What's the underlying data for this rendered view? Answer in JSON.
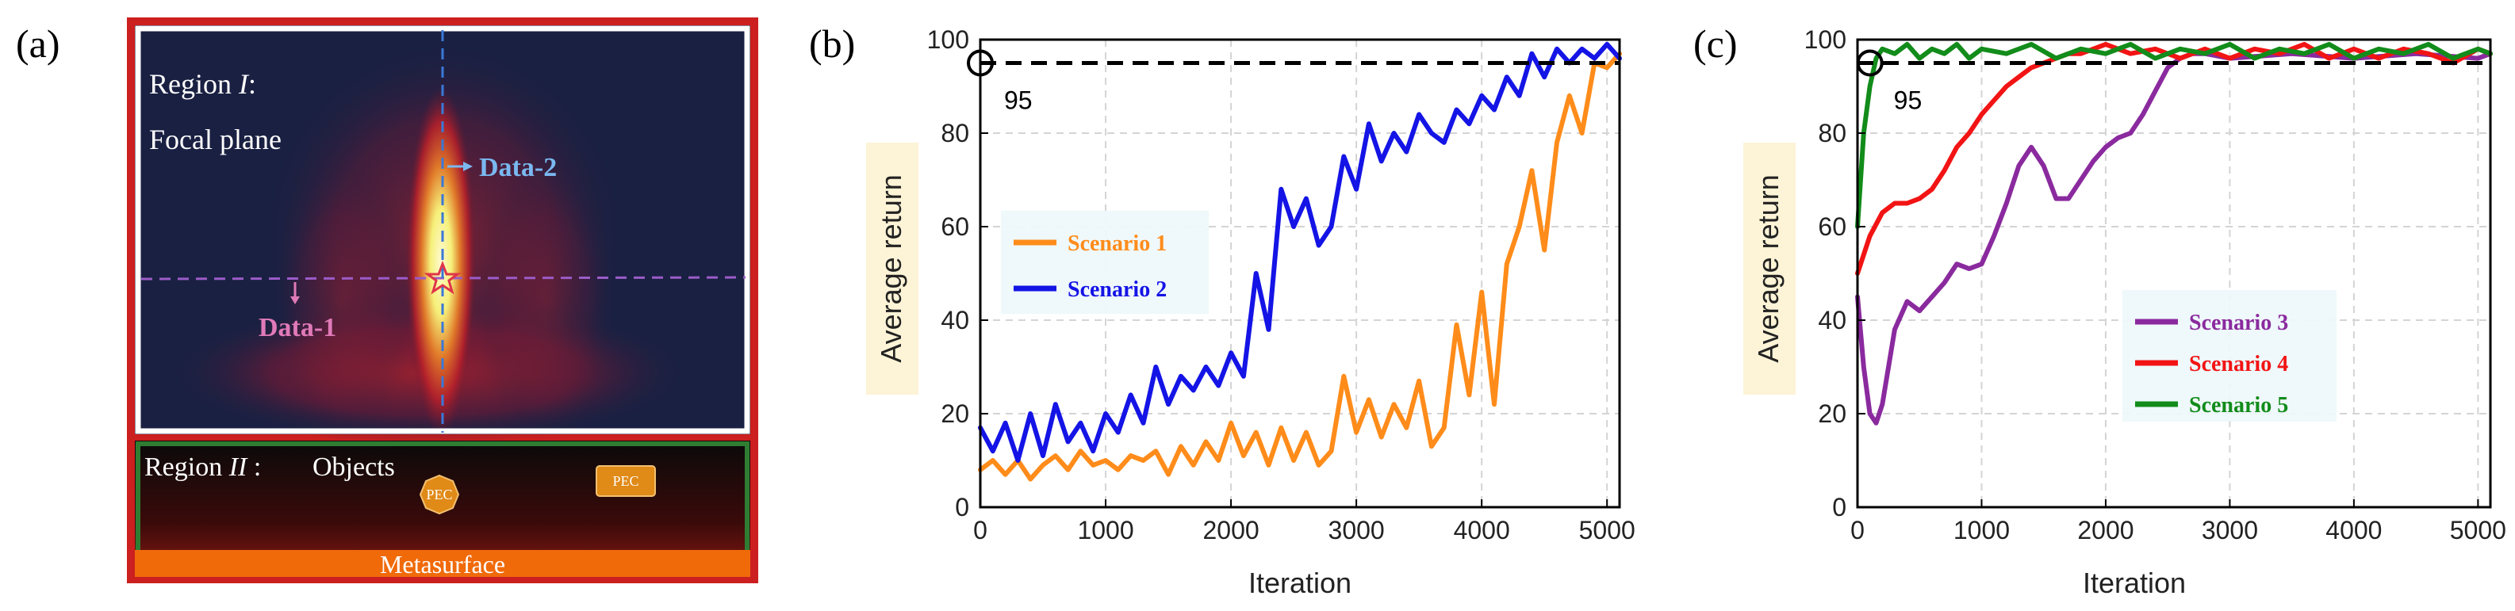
{
  "panel_labels": {
    "a": "(a)",
    "b": "(b)",
    "c": "(c)"
  },
  "panel_a": {
    "region1_prefix": "Region ",
    "region1_numeral": "I",
    "region1_suffix": ":",
    "focal_plane": "Focal plane",
    "data1": "Data-1",
    "data2": "Data-2",
    "region2_prefix": "Region ",
    "region2_numeral": "II",
    "region2_suffix": " :",
    "objects": "Objects",
    "pec1": "PEC",
    "pec2": "PEC",
    "metasurface": "Metasurface",
    "colors": {
      "background": "#1a2042",
      "hotspot": "#f6f07a",
      "red": "#c41e2a",
      "frame_region1": "#ffffff",
      "frame_region2": "#2f7d32",
      "outer_frame": "#cc1f1f",
      "metasurface": "#f06a0a",
      "pec": "#e08a18",
      "data1_line": "#9b5cc8",
      "data2_line": "#3a78d8",
      "data1_text": "#e07ab8",
      "data2_text": "#7ab8f0"
    }
  },
  "chart_data": [
    {
      "type": "line",
      "panel": "b",
      "xlabel": "Iteration",
      "ylabel": "Average return",
      "xlim": [
        0,
        5100
      ],
      "ylim": [
        0,
        100
      ],
      "xticks": [
        0,
        1000,
        2000,
        3000,
        4000,
        5000
      ],
      "yticks": [
        0,
        20,
        40,
        60,
        80,
        100
      ],
      "grid": true,
      "legend_position": "center-left",
      "threshold": {
        "y": 95,
        "label": "95"
      },
      "series": [
        {
          "name": "Scenario 1",
          "color": "#ff8c1a",
          "x": [
            0,
            100,
            200,
            300,
            400,
            500,
            600,
            700,
            800,
            900,
            1000,
            1100,
            1200,
            1300,
            1400,
            1500,
            1600,
            1700,
            1800,
            1900,
            2000,
            2100,
            2200,
            2300,
            2400,
            2500,
            2600,
            2700,
            2800,
            2900,
            3000,
            3100,
            3200,
            3300,
            3400,
            3500,
            3600,
            3700,
            3800,
            3900,
            4000,
            4100,
            4200,
            4300,
            4400,
            4500,
            4600,
            4700,
            4800,
            4900,
            5000,
            5100
          ],
          "y": [
            8,
            10,
            7,
            10,
            6,
            9,
            11,
            8,
            12,
            9,
            10,
            8,
            11,
            10,
            12,
            7,
            13,
            9,
            14,
            10,
            18,
            11,
            16,
            9,
            17,
            10,
            16,
            9,
            12,
            28,
            16,
            23,
            15,
            22,
            17,
            27,
            13,
            17,
            39,
            24,
            46,
            22,
            52,
            60,
            72,
            55,
            78,
            88,
            80,
            95,
            94,
            97
          ]
        },
        {
          "name": "Scenario 2",
          "color": "#1414e6",
          "x": [
            0,
            100,
            200,
            300,
            400,
            500,
            600,
            700,
            800,
            900,
            1000,
            1100,
            1200,
            1300,
            1400,
            1500,
            1600,
            1700,
            1800,
            1900,
            2000,
            2100,
            2200,
            2300,
            2400,
            2500,
            2600,
            2700,
            2800,
            2900,
            3000,
            3100,
            3200,
            3300,
            3400,
            3500,
            3600,
            3700,
            3800,
            3900,
            4000,
            4100,
            4200,
            4300,
            4400,
            4500,
            4600,
            4700,
            4800,
            4900,
            5000,
            5100
          ],
          "y": [
            17,
            12,
            18,
            10,
            20,
            11,
            22,
            14,
            18,
            12,
            20,
            16,
            24,
            18,
            30,
            22,
            28,
            25,
            30,
            26,
            33,
            28,
            50,
            38,
            68,
            60,
            66,
            56,
            60,
            75,
            68,
            82,
            74,
            80,
            76,
            84,
            80,
            78,
            85,
            82,
            88,
            85,
            92,
            88,
            97,
            92,
            98,
            95,
            98,
            96,
            99,
            96
          ]
        }
      ]
    },
    {
      "type": "line",
      "panel": "c",
      "xlabel": "Iteration",
      "ylabel": "Average return",
      "xlim": [
        0,
        5100
      ],
      "ylim": [
        0,
        100
      ],
      "xticks": [
        0,
        1000,
        2000,
        3000,
        4000,
        5000
      ],
      "yticks": [
        0,
        20,
        40,
        60,
        80,
        100
      ],
      "grid": true,
      "legend_position": "center-right",
      "threshold": {
        "y": 95,
        "label": "95"
      },
      "series": [
        {
          "name": "Scenario 3",
          "color": "#8a2a9e",
          "x": [
            0,
            50,
            100,
            150,
            200,
            300,
            400,
            500,
            600,
            700,
            800,
            900,
            1000,
            1100,
            1200,
            1300,
            1400,
            1500,
            1600,
            1700,
            1800,
            1900,
            2000,
            2100,
            2200,
            2300,
            2400,
            2500,
            2600,
            2700,
            2800,
            3000,
            3500,
            4000,
            4500,
            5000,
            5100
          ],
          "y": [
            45,
            30,
            20,
            18,
            22,
            38,
            44,
            42,
            45,
            48,
            52,
            51,
            52,
            58,
            65,
            73,
            77,
            73,
            66,
            66,
            70,
            74,
            77,
            79,
            80,
            84,
            89,
            94,
            96,
            97,
            97,
            96,
            97,
            96,
            97,
            96,
            97
          ]
        },
        {
          "name": "Scenario 4",
          "color": "#f21414",
          "x": [
            0,
            100,
            200,
            300,
            400,
            500,
            600,
            700,
            800,
            900,
            1000,
            1100,
            1200,
            1300,
            1400,
            1500,
            1600,
            1700,
            1800,
            1900,
            2000,
            2200,
            2400,
            2600,
            2800,
            3000,
            3200,
            3400,
            3600,
            3800,
            4000,
            4200,
            4400,
            4600,
            4800,
            5000,
            5100
          ],
          "y": [
            50,
            58,
            63,
            65,
            65,
            66,
            68,
            72,
            77,
            80,
            84,
            87,
            90,
            92,
            94,
            95,
            96,
            97,
            97,
            98,
            99,
            97,
            98,
            96,
            98,
            96,
            98,
            97,
            99,
            96,
            98,
            96,
            98,
            97,
            95,
            98,
            97
          ]
        },
        {
          "name": "Scenario 5",
          "color": "#128c1a",
          "x": [
            0,
            50,
            100,
            150,
            200,
            300,
            400,
            500,
            600,
            700,
            800,
            900,
            1000,
            1200,
            1400,
            1600,
            1800,
            2000,
            2200,
            2400,
            2600,
            2800,
            3000,
            3200,
            3400,
            3600,
            3800,
            4000,
            4200,
            4400,
            4600,
            4800,
            5000,
            5100
          ],
          "y": [
            60,
            80,
            90,
            96,
            98,
            97,
            99,
            96,
            98,
            97,
            99,
            96,
            98,
            97,
            99,
            96,
            98,
            97,
            99,
            96,
            98,
            97,
            99,
            96,
            98,
            97,
            99,
            96,
            98,
            97,
            99,
            96,
            98,
            97
          ]
        }
      ]
    }
  ]
}
